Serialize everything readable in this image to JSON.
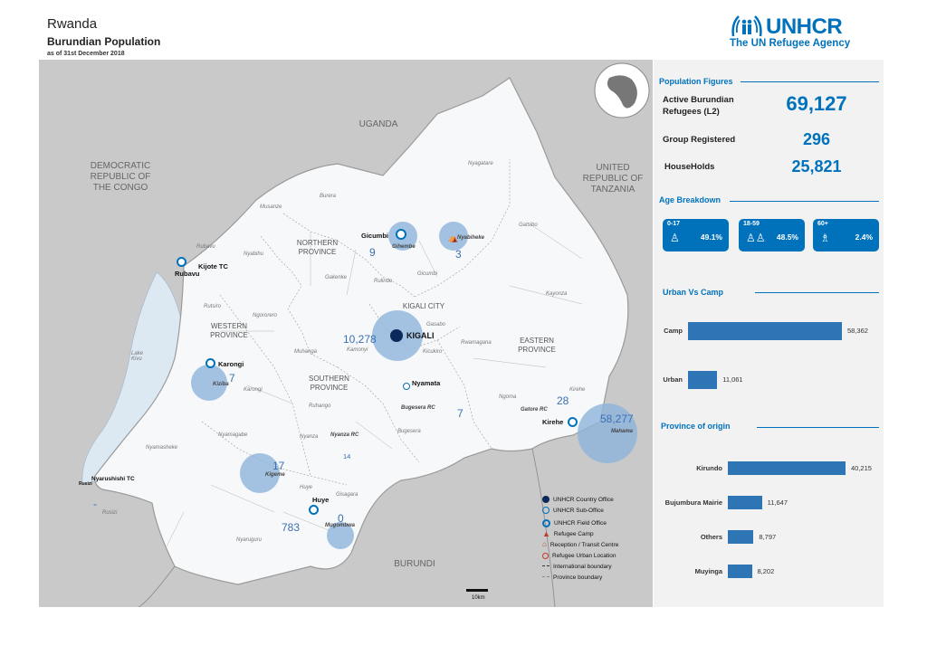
{
  "header": {
    "country": "Rwanda",
    "title": "Burundian Population",
    "date": "as of 31st December 2018"
  },
  "logo": {
    "name": "UNHCR",
    "tagline": "The UN Refugee Agency"
  },
  "map": {
    "countries": [
      {
        "label": "UGANDA"
      },
      {
        "label": "DEMOCRATIC REPUBLIC OF THE CONGO"
      },
      {
        "label": "UNITED REPUBLIC OF TANZANIA"
      },
      {
        "label": "BURUNDI"
      }
    ],
    "provinces": [
      {
        "label": "NORTHERN PROVINCE"
      },
      {
        "label": "KIGALI CITY"
      },
      {
        "label": "WESTERN PROVINCE"
      },
      {
        "label": "SOUTHERN PROVINCE"
      },
      {
        "label": "EASTERN PROVINCE"
      }
    ],
    "districts": [
      "Burera",
      "Musanze",
      "Gicumbi",
      "Nyagatare",
      "Gatsibo",
      "Rubavu",
      "Nyabihu",
      "Gakenke",
      "Rulindo",
      "Kayonza",
      "Rutsiro",
      "Ngororero",
      "Gasabo",
      "Muhanga",
      "Kamonyi",
      "Kicukiro",
      "Rwamagana",
      "Karongi",
      "Ruhango",
      "Ngoma",
      "Kirehe",
      "Nyamasheke",
      "Nyamagabe",
      "Nyanza",
      "Bugesera",
      "Huye",
      "Rusizi",
      "Gisagara",
      "Nyaruguru",
      "Lake Kivu"
    ],
    "sites": [
      {
        "name": "Gicumbi",
        "camp": "Gihembe",
        "count": "9"
      },
      {
        "name": "Nyabiheke",
        "count": "3"
      },
      {
        "name": "KIGALI",
        "count": "10,278"
      },
      {
        "name": "Karongi",
        "camp": "Kiziba",
        "count": "7"
      },
      {
        "name": "Kigeme",
        "count": "17"
      },
      {
        "name": "Nyanza RC",
        "count": "14"
      },
      {
        "name": "Huye",
        "count": "783"
      },
      {
        "name": "Mugombwa",
        "count": "0"
      },
      {
        "name": "Nyamata"
      },
      {
        "name": "Bugesera RC",
        "count": "7"
      },
      {
        "name": "Gatore RC",
        "count": "28"
      },
      {
        "name": "Kirehe",
        "camp": "Mahama",
        "count": "58,277"
      },
      {
        "name": "Rubavu"
      },
      {
        "name": "Kijote TC"
      },
      {
        "name": "Nyarushishi TC"
      },
      {
        "name": "Rusizi"
      }
    ],
    "misc_count": "-",
    "scale": "10km"
  },
  "legend": {
    "items": [
      {
        "label": "UNHCR Country Office",
        "icon": "country-office-icon"
      },
      {
        "label": "UNHCR Sub-Office",
        "icon": "sub-office-icon"
      },
      {
        "label": "UNHCR Field Office",
        "icon": "field-office-icon"
      },
      {
        "label": "Refugee Camp",
        "icon": "camp-icon"
      },
      {
        "label": "Reception / Transit Centre",
        "icon": "reception-icon"
      },
      {
        "label": "Refugee Urban Location",
        "icon": "urban-location-icon"
      },
      {
        "label": "International boundary",
        "icon": "intl-boundary-icon"
      },
      {
        "label": "Province boundary",
        "icon": "prov-boundary-icon"
      }
    ]
  },
  "population": {
    "title": "Population Figures",
    "rows": [
      {
        "label": "Active Burundian Refugees (L2)",
        "value": "69,127"
      },
      {
        "label": "Group Registered",
        "value": "296"
      },
      {
        "label": "HouseHolds",
        "value": "25,821"
      }
    ]
  },
  "age": {
    "title": "Age Breakdown",
    "groups": [
      {
        "range": "0-17",
        "pct": "49.1%"
      },
      {
        "range": "18-59",
        "pct": "48.5%"
      },
      {
        "range": "60+",
        "pct": "2.4%"
      }
    ]
  },
  "colors": {
    "accent": "#0072bc",
    "bar": "#2e75b6",
    "panel": "#f2f2f2"
  },
  "chart_data": [
    {
      "type": "bar",
      "title": "Urban Vs Camp",
      "categories": [
        "Camp",
        "Urban"
      ],
      "values": [
        58362,
        11061
      ],
      "value_labels": [
        "58,362",
        "11,061"
      ]
    },
    {
      "type": "bar",
      "title": "Province of origin",
      "categories": [
        "Kirundo",
        "Bujumbura Mairie",
        "Others",
        "Muyinga"
      ],
      "values": [
        40215,
        11647,
        8797,
        8202
      ],
      "value_labels": [
        "40,215",
        "11,647",
        "8,797",
        "8,202"
      ]
    }
  ]
}
